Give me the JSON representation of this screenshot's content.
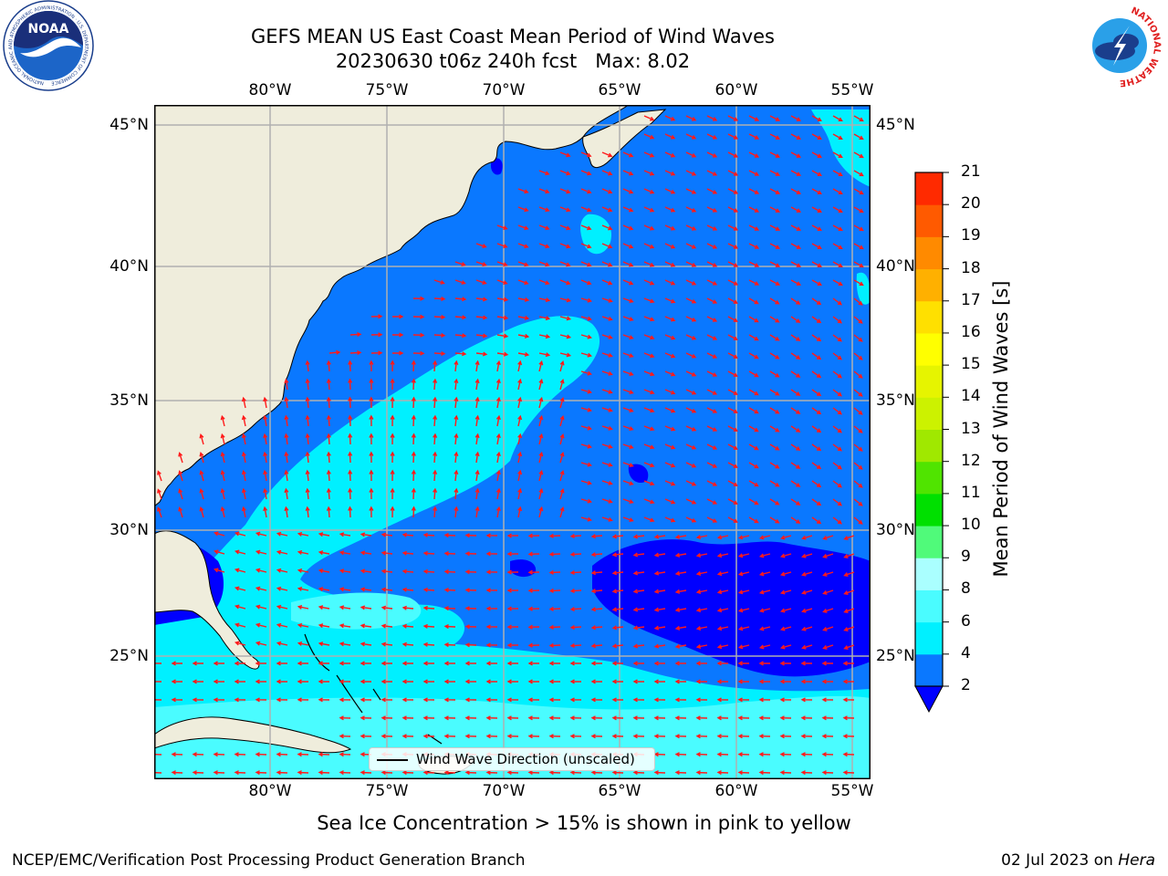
{
  "header": {
    "title_line1": "GEFS MEAN US East Coast Mean Period of Wind Waves",
    "title_line2": "20230630 t06z 240h fcst   Max: 8.02"
  },
  "logos": {
    "left": {
      "name": "noaa-logo",
      "text": "NOAA",
      "ring_text": "NATIONAL OCEANIC AND ATMOSPHERIC ADMINISTRATION · U.S. DEPARTMENT OF COMMERCE"
    },
    "right": {
      "name": "nws-logo",
      "ring_text": "NATIONAL WEATHER SERVICE"
    }
  },
  "map": {
    "longitude_ticks": [
      "80°W",
      "75°W",
      "70°W",
      "65°W",
      "60°W",
      "55°W"
    ],
    "latitude_ticks": [
      "45°N",
      "40°N",
      "35°N",
      "30°N",
      "25°N"
    ],
    "extent": {
      "lon_min": -85,
      "lon_max": -54.3,
      "lat_min": 20.5,
      "lat_max": 45.8
    },
    "legend": "Wind Wave Direction (unscaled)",
    "colors": {
      "land": "#efeddc",
      "grid": "#b0b0b0",
      "arrow": "#ff1a1a",
      "coast": "#000000"
    }
  },
  "colorbar": {
    "label": "Mean Period of Wind Waves [s]",
    "ticks": [
      "2",
      "4",
      "6",
      "8",
      "9",
      "10",
      "11",
      "12",
      "13",
      "14",
      "15",
      "16",
      "17",
      "18",
      "19",
      "20",
      "21"
    ],
    "colors": [
      "#0a78ff",
      "#00f0ff",
      "#4afcff",
      "#aaffff",
      "#50fa7a",
      "#00e000",
      "#50e400",
      "#a0e800",
      "#ccf200",
      "#e6f400",
      "#ffff00",
      "#ffe000",
      "#ffb000",
      "#ff8a00",
      "#ff5a00",
      "#ff2a00"
    ],
    "under_color": "#0000ff"
  },
  "caption": "Sea Ice Concentration > 15% is shown in pink to yellow",
  "footer": {
    "left": "NCEP/EMC/Verification Post Processing Product Generation Branch",
    "date": "02 Jul 2023 on ",
    "machine": "Hera"
  }
}
